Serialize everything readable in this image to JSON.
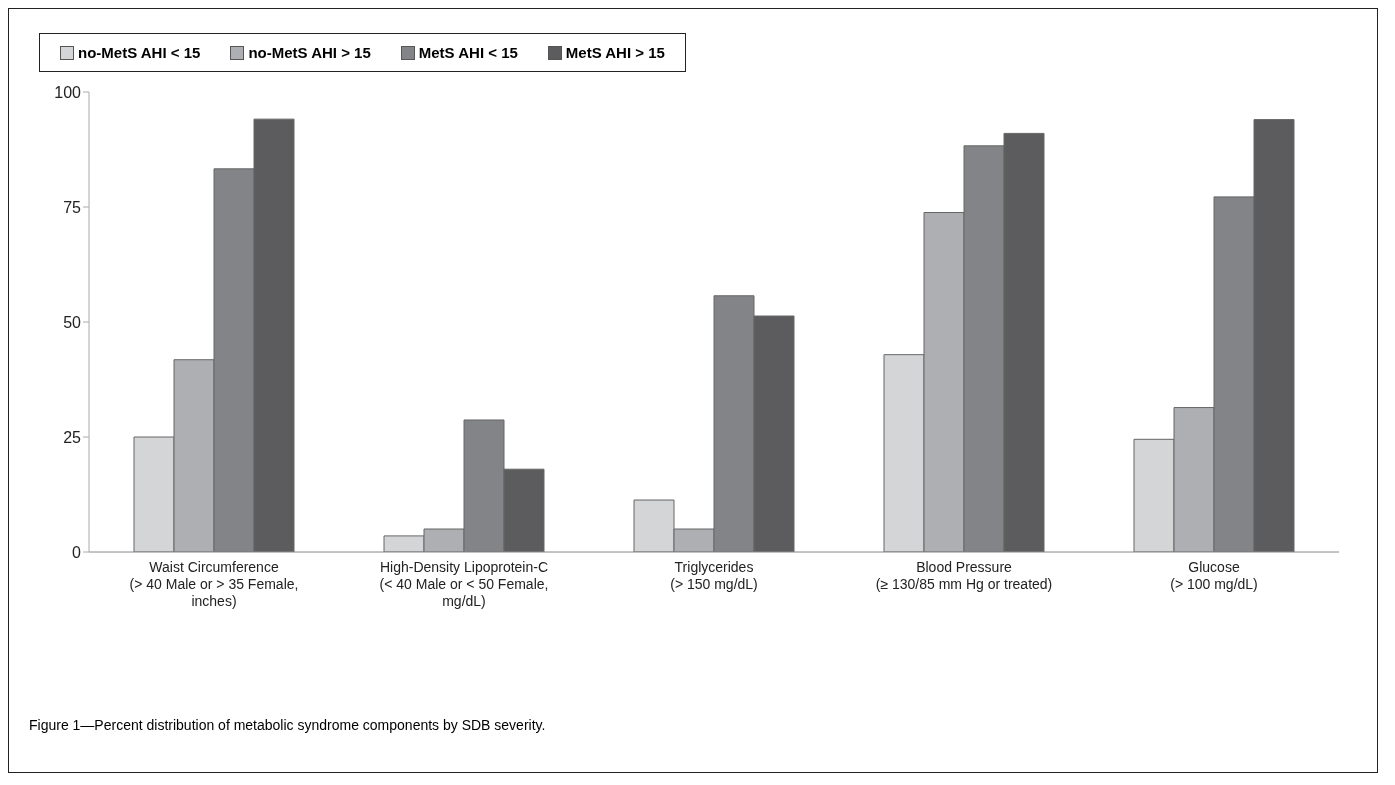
{
  "chart_data": {
    "type": "bar",
    "categories": [
      "Waist Circumference\n(> 40 Male or > 35 Female,\ninches)",
      "High-Density Lipoprotein-C\n(< 40 Male or < 50 Female,\nmg/dL)",
      "Triglycerides\n(> 150 mg/dL)",
      "Blood Pressure\n(≥ 130/85 mm Hg or treated)",
      "Glucose\n(> 100 mg/dL)"
    ],
    "series": [
      {
        "name": "no-MetS AHI < 15",
        "color": "#d4d5d7",
        "values": [
          25,
          3.5,
          11.3,
          42.9,
          24.5
        ]
      },
      {
        "name": "no-MetS AHI > 15",
        "color": "#aeafb2",
        "values": [
          41.8,
          5,
          5,
          73.8,
          31.4
        ]
      },
      {
        "name": "MetS AHI < 15",
        "color": "#838488",
        "values": [
          83.3,
          28.7,
          55.7,
          88.3,
          77.2
        ]
      },
      {
        "name": "MetS AHI > 15",
        "color": "#5c5c5f",
        "values": [
          94.1,
          18,
          51.3,
          91,
          94
        ]
      }
    ],
    "ylim": [
      0,
      100
    ],
    "yticks": [
      0,
      25,
      50,
      75,
      100
    ],
    "grid": false,
    "legend": "top left",
    "annotations": [
      "Figure 1—Percent distribution of metabolic syndrome components by SDB severity."
    ]
  }
}
